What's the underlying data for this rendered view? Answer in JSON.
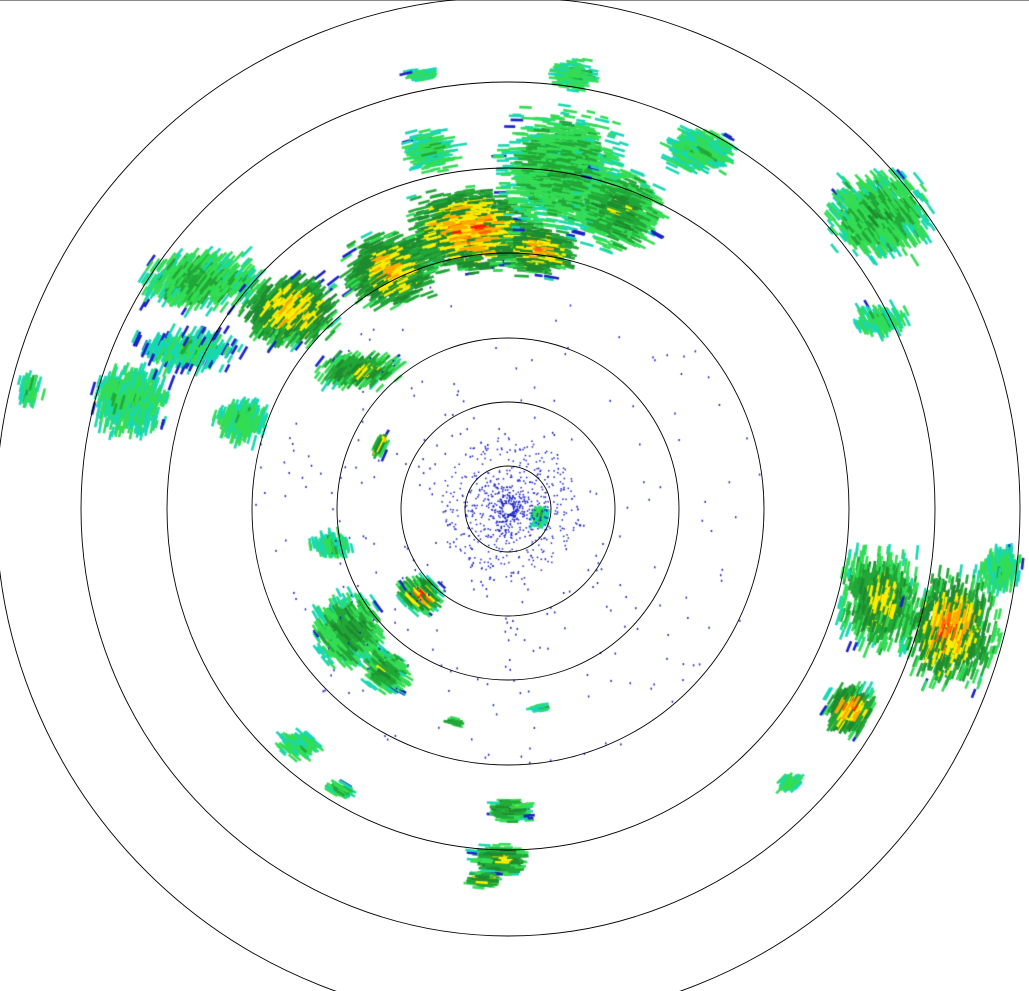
{
  "radar": {
    "range_ring_count": 7,
    "ring_color": "#000000",
    "background": "#ffffff",
    "reflectivity_palette": [
      "#1a22c8",
      "#18d8b0",
      "#33dd55",
      "#22a838",
      "#1e8c30",
      "#ffee00",
      "#ffaa00",
      "#ff6600",
      "#ff1a00"
    ]
  }
}
